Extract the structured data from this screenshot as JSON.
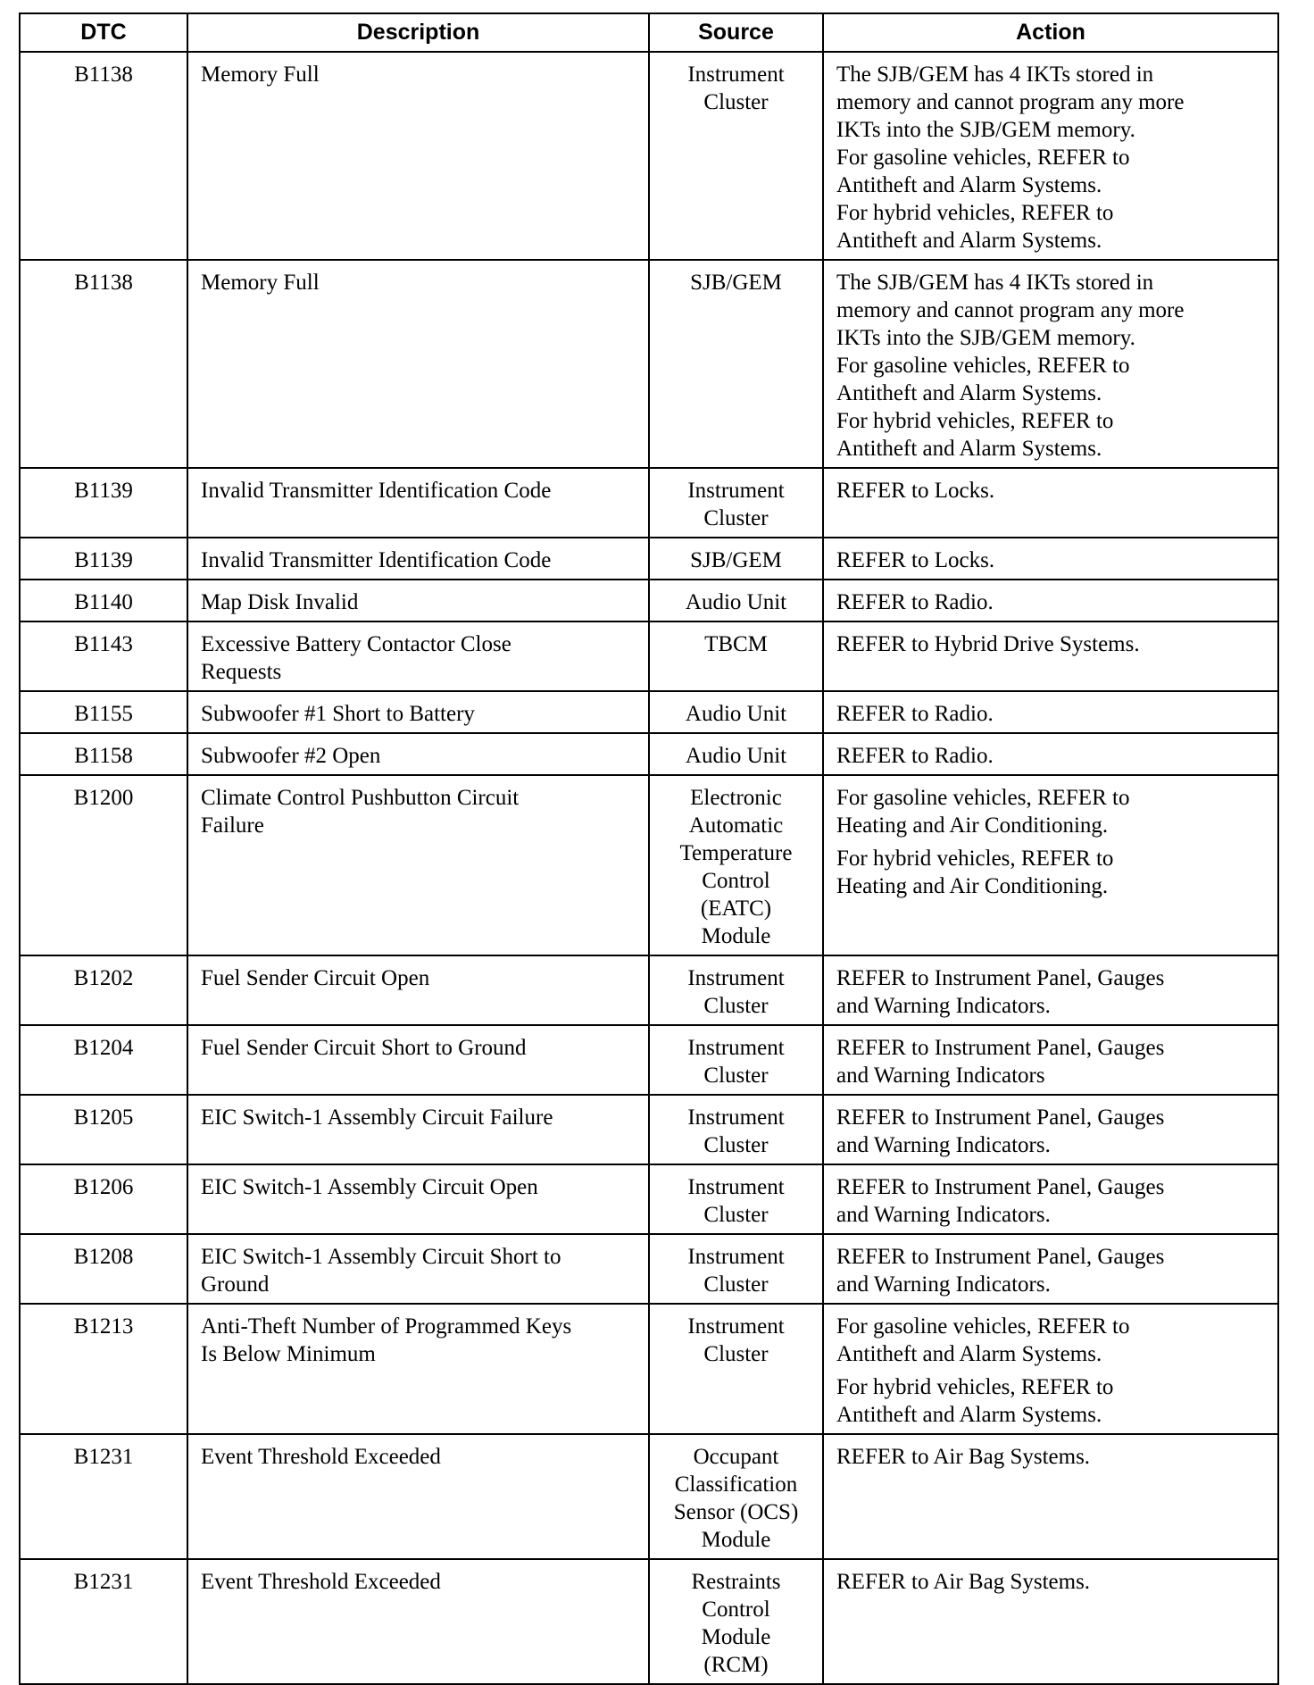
{
  "table": {
    "headers": [
      "DTC",
      "Description",
      "Source",
      "Action"
    ],
    "rows": [
      {
        "dtc": "B1138",
        "description": [
          "Memory Full"
        ],
        "source": [
          "Instrument",
          "Cluster"
        ],
        "action": [
          [
            "The SJB/GEM has 4 IKTs stored in",
            "memory and cannot program any more",
            "IKTs into the SJB/GEM memory.",
            "For gasoline vehicles, REFER to",
            "Antitheft and Alarm Systems.",
            "For hybrid vehicles, REFER to",
            "Antitheft and Alarm Systems."
          ]
        ]
      },
      {
        "dtc": "B1138",
        "description": [
          "Memory Full"
        ],
        "source": [
          "SJB/GEM"
        ],
        "action": [
          [
            "The SJB/GEM has 4 IKTs stored in",
            "memory and cannot program any more",
            "IKTs into the SJB/GEM memory.",
            "For gasoline vehicles, REFER to",
            "Antitheft and Alarm Systems.",
            "For hybrid vehicles, REFER to",
            "Antitheft and Alarm Systems."
          ]
        ]
      },
      {
        "dtc": "B1139",
        "description": [
          "Invalid Transmitter Identification Code"
        ],
        "source": [
          "Instrument",
          "Cluster"
        ],
        "action": [
          [
            "REFER to Locks."
          ]
        ]
      },
      {
        "dtc": "B1139",
        "description": [
          "Invalid Transmitter Identification Code"
        ],
        "source": [
          "SJB/GEM"
        ],
        "action": [
          [
            "REFER to Locks."
          ]
        ]
      },
      {
        "dtc": "B1140",
        "description": [
          "Map Disk Invalid"
        ],
        "source": [
          "Audio Unit"
        ],
        "action": [
          [
            "REFER to Radio."
          ]
        ]
      },
      {
        "dtc": "B1143",
        "description": [
          "Excessive Battery Contactor Close",
          "Requests"
        ],
        "source": [
          "TBCM"
        ],
        "action": [
          [
            "REFER to Hybrid Drive Systems."
          ]
        ]
      },
      {
        "dtc": "B1155",
        "description": [
          "Subwoofer #1 Short to Battery"
        ],
        "source": [
          "Audio Unit"
        ],
        "action": [
          [
            "REFER to Radio."
          ]
        ]
      },
      {
        "dtc": "B1158",
        "description": [
          "Subwoofer #2 Open"
        ],
        "source": [
          "Audio Unit"
        ],
        "action": [
          [
            "REFER to Radio."
          ]
        ]
      },
      {
        "dtc": "B1200",
        "description": [
          "Climate Control Pushbutton Circuit",
          "Failure"
        ],
        "source": [
          "Electronic",
          "Automatic",
          "Temperature",
          "Control",
          "(EATC)",
          "Module"
        ],
        "action": [
          [
            "For gasoline vehicles, REFER to",
            "Heating and Air Conditioning."
          ],
          [
            "For hybrid vehicles, REFER to",
            "Heating and Air Conditioning."
          ]
        ]
      },
      {
        "dtc": "B1202",
        "description": [
          "Fuel Sender Circuit Open"
        ],
        "source": [
          "Instrument",
          "Cluster"
        ],
        "action": [
          [
            "REFER to Instrument Panel, Gauges",
            "and Warning Indicators."
          ]
        ]
      },
      {
        "dtc": "B1204",
        "description": [
          "Fuel Sender Circuit Short to Ground"
        ],
        "source": [
          "Instrument",
          "Cluster"
        ],
        "action": [
          [
            "REFER to Instrument Panel, Gauges",
            "and Warning Indicators"
          ]
        ]
      },
      {
        "dtc": "B1205",
        "description": [
          "EIC Switch-1 Assembly Circuit Failure"
        ],
        "source": [
          "Instrument",
          "Cluster"
        ],
        "action": [
          [
            "REFER to Instrument Panel, Gauges",
            "and Warning Indicators."
          ]
        ]
      },
      {
        "dtc": "B1206",
        "description": [
          "EIC Switch-1 Assembly Circuit Open"
        ],
        "source": [
          "Instrument",
          "Cluster"
        ],
        "action": [
          [
            "REFER to Instrument Panel, Gauges",
            "and Warning Indicators."
          ]
        ]
      },
      {
        "dtc": "B1208",
        "description": [
          "EIC Switch-1 Assembly Circuit Short to",
          "Ground"
        ],
        "source": [
          "Instrument",
          "Cluster"
        ],
        "action": [
          [
            "REFER to Instrument Panel, Gauges",
            "and Warning Indicators."
          ]
        ]
      },
      {
        "dtc": "B1213",
        "description": [
          "Anti-Theft Number of Programmed Keys",
          "Is Below Minimum"
        ],
        "source": [
          "Instrument",
          "Cluster"
        ],
        "action": [
          [
            "For gasoline vehicles, REFER to",
            "Antitheft and Alarm Systems."
          ],
          [
            "For hybrid vehicles, REFER to",
            "Antitheft and Alarm Systems."
          ]
        ]
      },
      {
        "dtc": "B1231",
        "description": [
          "Event Threshold Exceeded"
        ],
        "source": [
          "Occupant",
          "Classification",
          "Sensor (OCS)",
          "Module"
        ],
        "action": [
          [
            "REFER to Air Bag Systems."
          ]
        ]
      },
      {
        "dtc": "B1231",
        "description": [
          "Event Threshold Exceeded"
        ],
        "source": [
          "Restraints",
          "Control",
          "Module",
          "(RCM)"
        ],
        "action": [
          [
            "REFER to Air Bag Systems."
          ]
        ]
      }
    ]
  }
}
